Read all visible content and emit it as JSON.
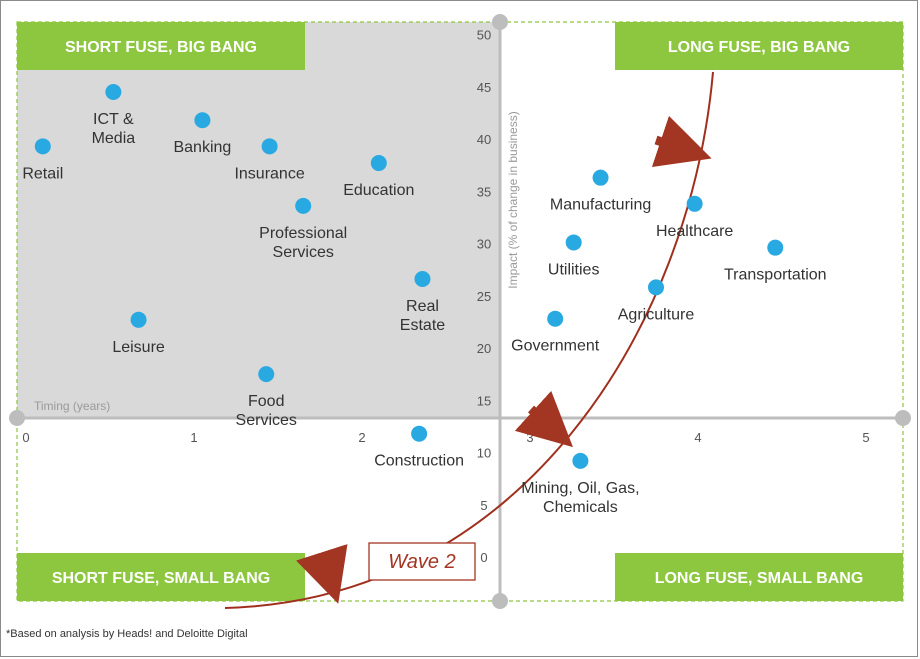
{
  "colors": {
    "quadrant_banner": "#8dc63f",
    "shaded_quadrant": "#d9d9d9",
    "point": "#29a9e1",
    "axis": "#bdbdbd",
    "wave_curve": "#a0301e",
    "arrow": "#a33523",
    "dashed_border": "#8dc63f"
  },
  "quadrants": {
    "top_left": "SHORT FUSE, BIG BANG",
    "top_right": "LONG FUSE, BIG BANG",
    "bottom_left": "SHORT FUSE, SMALL BANG",
    "bottom_right": "LONG FUSE, SMALL BANG"
  },
  "wave_label": "Wave 2",
  "footnote": "*Based on analysis by Heads! and Deloitte Digital",
  "chart_data": {
    "type": "scatter",
    "xlabel": "Timing (years)",
    "ylabel": "Impact (% of change in business)",
    "xlim": [
      0,
      5
    ],
    "ylim": [
      0,
      50
    ],
    "x_ticks": [
      "0",
      "1",
      "2",
      "3",
      "4",
      "5"
    ],
    "y_ticks": [
      "0",
      "5",
      "10",
      "15",
      "20",
      "25",
      "30",
      "35",
      "40",
      "45",
      "50"
    ],
    "points": [
      {
        "label": [
          "Retail"
        ],
        "x": 0.1,
        "y": 39.3
      },
      {
        "label": [
          "ICT &",
          "Media"
        ],
        "x": 0.52,
        "y": 44.5
      },
      {
        "label": [
          "Banking"
        ],
        "x": 1.05,
        "y": 41.8
      },
      {
        "label": [
          "Insurance"
        ],
        "x": 1.45,
        "y": 39.3
      },
      {
        "label": [
          "Education"
        ],
        "x": 2.1,
        "y": 37.7
      },
      {
        "label": [
          "Professional",
          "Services"
        ],
        "x": 1.65,
        "y": 33.6
      },
      {
        "label": [
          "Real",
          "Estate"
        ],
        "x": 2.36,
        "y": 26.6
      },
      {
        "label": [
          "Leisure"
        ],
        "x": 0.67,
        "y": 22.7
      },
      {
        "label": [
          "Food",
          "Services"
        ],
        "x": 1.43,
        "y": 17.5
      },
      {
        "label": [
          "Construction"
        ],
        "x": 2.34,
        "y": 11.8
      },
      {
        "label": [
          "Manufacturing"
        ],
        "x": 3.42,
        "y": 36.3
      },
      {
        "label": [
          "Healthcare"
        ],
        "x": 3.98,
        "y": 33.8
      },
      {
        "label": [
          "Utilities"
        ],
        "x": 3.26,
        "y": 30.1
      },
      {
        "label": [
          "Transportation"
        ],
        "x": 4.46,
        "y": 29.6
      },
      {
        "label": [
          "Agriculture"
        ],
        "x": 3.75,
        "y": 25.8
      },
      {
        "label": [
          "Government"
        ],
        "x": 3.15,
        "y": 22.8
      },
      {
        "label": [
          "Mining, Oil, Gas,",
          "Chemicals"
        ],
        "x": 3.3,
        "y": 9.2
      }
    ]
  }
}
